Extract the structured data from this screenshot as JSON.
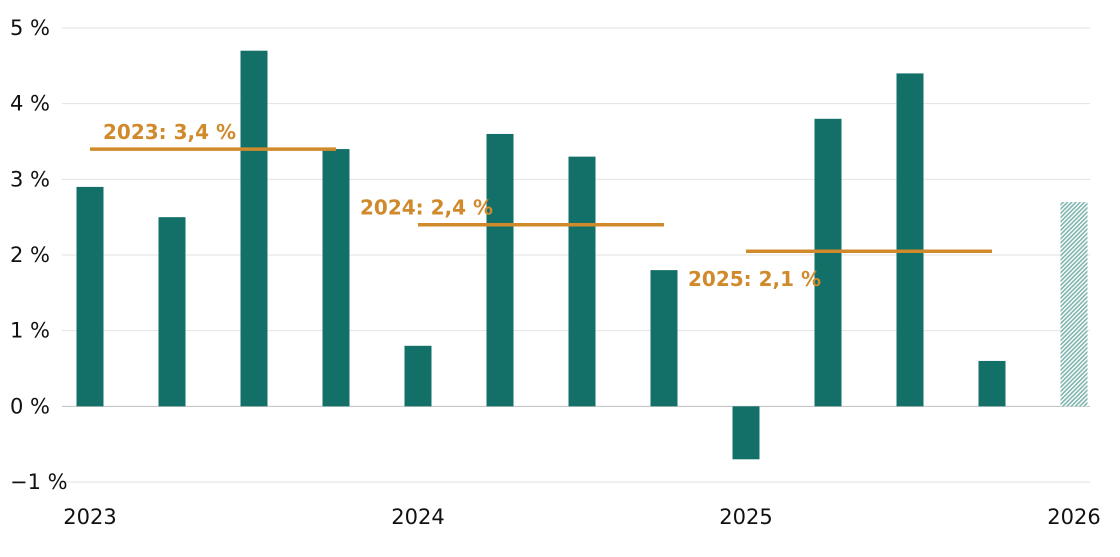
{
  "chart_data": {
    "type": "bar",
    "title": "",
    "xlabel": "",
    "ylabel": "",
    "ylim": [
      -1,
      5
    ],
    "yticks": [
      {
        "value": 5,
        "label": "5 %"
      },
      {
        "value": 4,
        "label": "4 %"
      },
      {
        "value": 3,
        "label": "3 %"
      },
      {
        "value": 2,
        "label": "2 %"
      },
      {
        "value": 1,
        "label": "1 %"
      },
      {
        "value": 0,
        "label": "0 %"
      },
      {
        "value": -1,
        "label": "−1 %"
      }
    ],
    "xticks": [
      {
        "value": 2023,
        "label": "2023"
      },
      {
        "value": 2024,
        "label": "2024"
      },
      {
        "value": 2025,
        "label": "2025"
      },
      {
        "value": 2026,
        "label": "2026"
      }
    ],
    "bars": [
      {
        "period": "2023 Q1",
        "x": 2023.0,
        "value": 2.9,
        "forecast": false
      },
      {
        "period": "2023 Q2",
        "x": 2023.25,
        "value": 2.5,
        "forecast": false
      },
      {
        "period": "2023 Q3",
        "x": 2023.5,
        "value": 4.7,
        "forecast": false
      },
      {
        "period": "2023 Q4",
        "x": 2023.75,
        "value": 3.4,
        "forecast": false
      },
      {
        "period": "2024 Q1",
        "x": 2024.0,
        "value": 0.8,
        "forecast": false
      },
      {
        "period": "2024 Q2",
        "x": 2024.25,
        "value": 3.6,
        "forecast": false
      },
      {
        "period": "2024 Q3",
        "x": 2024.5,
        "value": 3.3,
        "forecast": false
      },
      {
        "period": "2024 Q4",
        "x": 2024.75,
        "value": 1.8,
        "forecast": false
      },
      {
        "period": "2025 Q1",
        "x": 2025.0,
        "value": -0.7,
        "forecast": false
      },
      {
        "period": "2025 Q2",
        "x": 2025.25,
        "value": 3.8,
        "forecast": false
      },
      {
        "period": "2025 Q3",
        "x": 2025.5,
        "value": 4.4,
        "forecast": false
      },
      {
        "period": "2025 Q4",
        "x": 2025.75,
        "value": 0.6,
        "forecast": false
      },
      {
        "period": "2026 Q1",
        "x": 2026.0,
        "value": 2.7,
        "forecast": true
      }
    ],
    "averages": [
      {
        "year": "2023",
        "label": "2023: 3,4 %",
        "value": 3.4,
        "x_start": 2023.0,
        "x_end": 2023.75,
        "label_pos": "above"
      },
      {
        "year": "2024",
        "label": "2024: 2,4 %",
        "value": 2.4,
        "x_start": 2024.0,
        "x_end": 2024.75,
        "label_pos": "above-left"
      },
      {
        "year": "2025",
        "label": "2025: 2,1 %",
        "value": 2.05,
        "x_start": 2025.0,
        "x_end": 2025.75,
        "label_pos": "below-left"
      }
    ],
    "grid": true,
    "legend": "none",
    "colors": {
      "bar": "#137069",
      "forecast_bar": "#7fb4ae",
      "average_line": "#d08a2c",
      "grid": "#e2e2e2",
      "zero_line": "#bfbfbf",
      "text": "#111111"
    }
  }
}
